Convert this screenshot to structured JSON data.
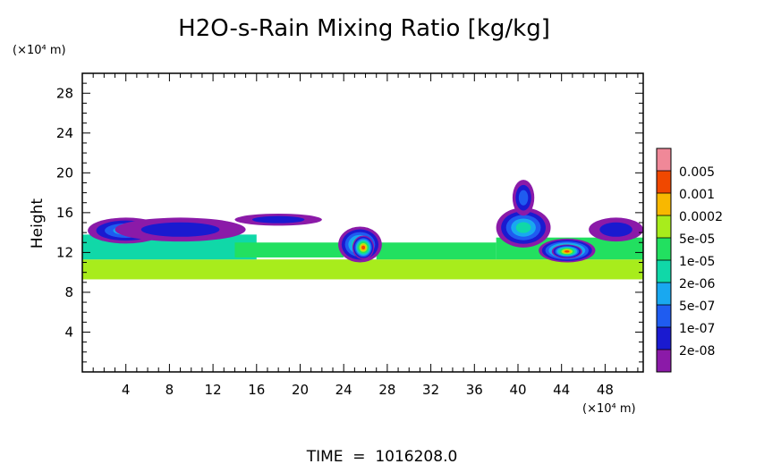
{
  "chart_data": {
    "type": "heatmap",
    "title": "H2O-s-Rain Mixing Ratio [kg/kg]",
    "ylabel": "Height",
    "y_unit": "(×10⁴ m)",
    "x_unit": "(×10⁴ m)",
    "footer": "TIME  =  1016208.0",
    "xlim": [
      0,
      51.5
    ],
    "ylim": [
      0,
      30
    ],
    "xticks": [
      4,
      8,
      12,
      16,
      20,
      24,
      28,
      32,
      36,
      40,
      44,
      48
    ],
    "yticks": [
      4,
      8,
      12,
      16,
      20,
      24,
      28
    ],
    "xtick_labels": [
      "4",
      "8",
      "12",
      "16",
      "20",
      "24",
      "28",
      "32",
      "36",
      "40",
      "44",
      "48"
    ],
    "ytick_labels": [
      "4",
      "8",
      "12",
      "16",
      "20",
      "24",
      "28"
    ],
    "legend_placement": "right",
    "colorbar": {
      "colors": [
        "#8b1aa8",
        "#1a1ad0",
        "#1f5cf0",
        "#19a8f0",
        "#10d8a8",
        "#22e060",
        "#a8ec1c",
        "#f8b800",
        "#f04800",
        "#f08898"
      ],
      "labels": [
        "2e-08",
        "1e-07",
        "5e-07",
        "2e-06",
        "1e-05",
        "5e-05",
        "0.0002",
        "0.001",
        "0.005"
      ]
    },
    "bands": [
      {
        "x0": 0,
        "x1": 51.5,
        "y0": 9.3,
        "y1": 11.3,
        "level": 6
      },
      {
        "x0": 0,
        "x1": 16,
        "y0": 11.3,
        "y1": 13.8,
        "level": 4
      },
      {
        "x0": 14,
        "x1": 24,
        "y0": 11.5,
        "y1": 13,
        "level": 5
      },
      {
        "x0": 27,
        "x1": 38,
        "y0": 11.3,
        "y1": 13,
        "level": 5
      },
      {
        "x0": 38,
        "x1": 51.5,
        "y0": 11.3,
        "y1": 13.5,
        "level": 5
      }
    ],
    "blobs": [
      {
        "cx": 4,
        "cy": 14.2,
        "rx": 3.5,
        "ry": 1.3,
        "level": 3
      },
      {
        "cx": 9,
        "cy": 14.3,
        "rx": 6,
        "ry": 1.2,
        "level": 1
      },
      {
        "cx": 18,
        "cy": 15.3,
        "rx": 4,
        "ry": 0.6,
        "level": 1
      },
      {
        "cx": 25.5,
        "cy": 12.8,
        "rx": 2,
        "ry": 1.8,
        "level": 5
      },
      {
        "cx": 25.8,
        "cy": 12.5,
        "rx": 1,
        "ry": 1.2,
        "level": 8
      },
      {
        "cx": 40.5,
        "cy": 14.5,
        "rx": 2.5,
        "ry": 2,
        "level": 4
      },
      {
        "cx": 40.5,
        "cy": 17.5,
        "rx": 1,
        "ry": 1.8,
        "level": 2
      },
      {
        "cx": 44.5,
        "cy": 12.2,
        "rx": 2.6,
        "ry": 1.2,
        "level": 7
      },
      {
        "cx": 44.5,
        "cy": 12.1,
        "rx": 1.4,
        "ry": 0.7,
        "level": 8
      },
      {
        "cx": 49,
        "cy": 14.3,
        "rx": 2.5,
        "ry": 1.2,
        "level": 1
      }
    ]
  }
}
